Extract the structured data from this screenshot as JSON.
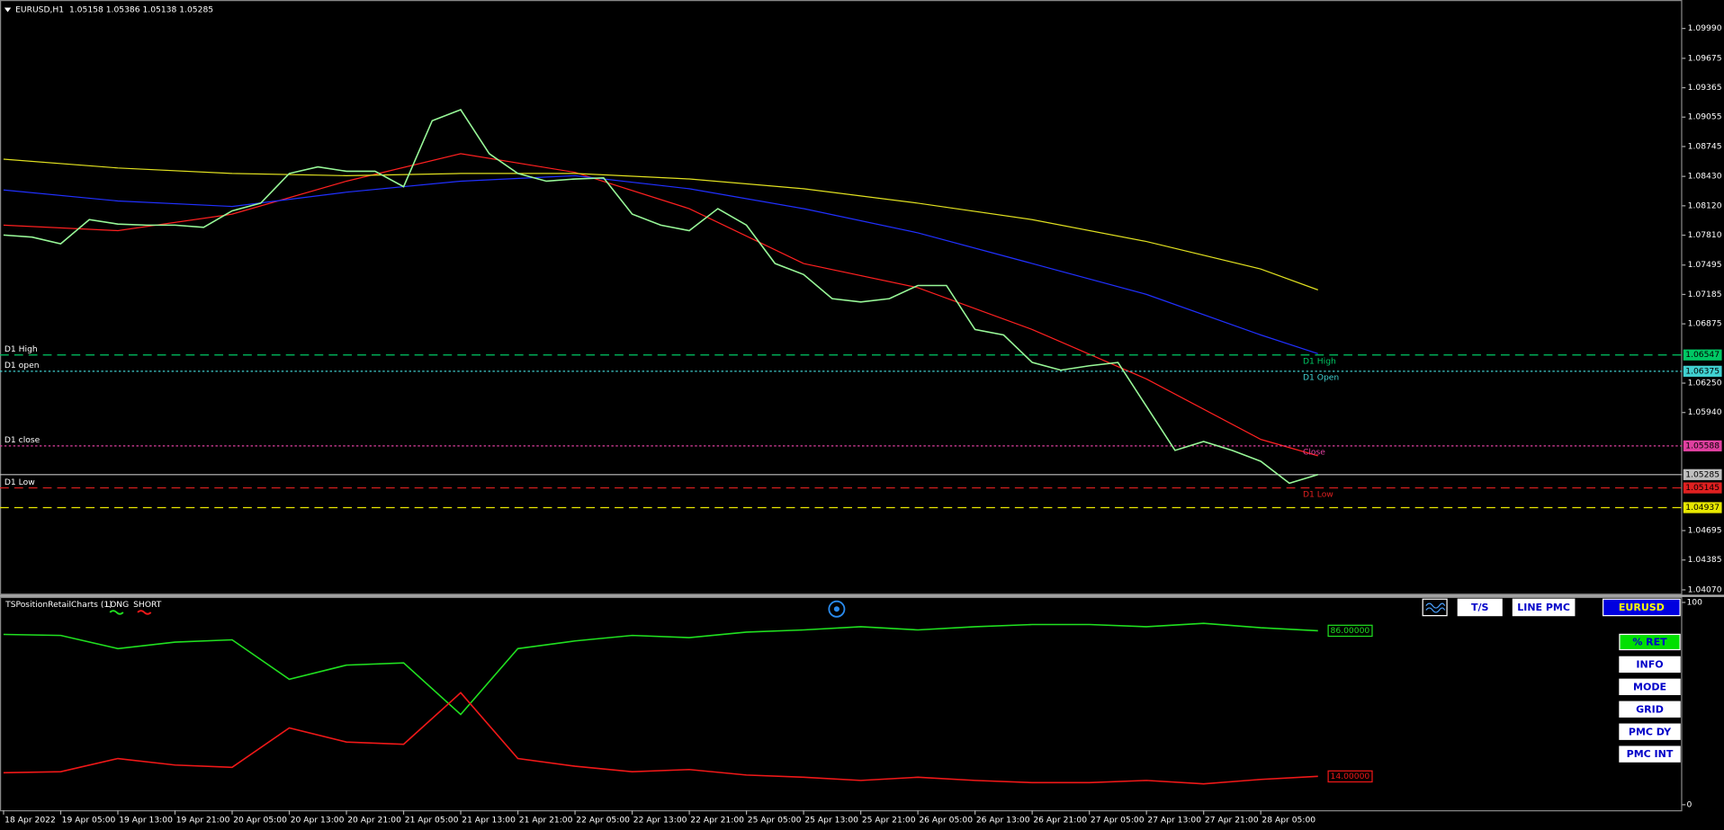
{
  "header": "EURUSD,H1  1.05158 1.05386 1.05138 1.05285",
  "chart_data": [
    {
      "type": "line",
      "xlim": [
        -0.5,
        235
      ],
      "ylim": [
        1.0403,
        1.1029
      ],
      "x": [
        0,
        4,
        8,
        12,
        16,
        20,
        24,
        28,
        32,
        36,
        40,
        44,
        48,
        52,
        56,
        60,
        64,
        68,
        72,
        76,
        80,
        84,
        88,
        92,
        96,
        100,
        104,
        108,
        112,
        116,
        120,
        124,
        128,
        132,
        136,
        140,
        144,
        148,
        152,
        156,
        160,
        164,
        168,
        172,
        176,
        180,
        184
      ],
      "values": [
        1.07812,
        1.07789,
        1.07719,
        1.07974,
        1.07928,
        1.07916,
        1.07916,
        1.07893,
        1.08067,
        1.08148,
        1.08461,
        1.0853,
        1.08484,
        1.08484,
        1.08322,
        1.09017,
        1.09133,
        1.08669,
        1.08461,
        1.0838,
        1.08403,
        1.08414,
        1.08032,
        1.07916,
        1.07858,
        1.0809,
        1.07916,
        1.07511,
        1.07395,
        1.0714,
        1.07105,
        1.0714,
        1.07279,
        1.07279,
        1.06816,
        1.06758,
        1.06468,
        1.06387,
        1.06433,
        1.06468,
        1.06005,
        1.05541,
        1.05634,
        1.05541,
        1.05426,
        1.05194,
        1.05285
      ],
      "color": "#98f898",
      "moving_averages": [
        {
          "color": "#ff2020",
          "x": [
            0,
            16,
            32,
            48,
            64,
            80,
            96,
            112,
            128,
            144,
            160,
            176,
            184
          ],
          "values": [
            1.07916,
            1.07858,
            1.08032,
            1.0838,
            1.08669,
            1.08472,
            1.0809,
            1.07511,
            1.07256,
            1.06816,
            1.06294,
            1.05657,
            1.05484
          ]
        },
        {
          "color": "#2030ff",
          "x": [
            0,
            16,
            32,
            48,
            64,
            80,
            96,
            112,
            128,
            144,
            160,
            176,
            184
          ],
          "values": [
            1.08287,
            1.08171,
            1.08113,
            1.08264,
            1.0838,
            1.08438,
            1.08299,
            1.0809,
            1.07835,
            1.07511,
            1.07186,
            1.06758,
            1.06561
          ]
        },
        {
          "color": "#e0e020",
          "x": [
            0,
            16,
            32,
            48,
            64,
            80,
            96,
            112,
            128,
            144,
            160,
            176,
            184
          ],
          "values": [
            1.08611,
            1.08519,
            1.08461,
            1.08438,
            1.08461,
            1.08461,
            1.08403,
            1.08299,
            1.08148,
            1.07974,
            1.07743,
            1.07453,
            1.07233
          ]
        }
      ],
      "levels": [
        {
          "value": 1.06547,
          "label": "1.06547",
          "color": "#00c864",
          "dash": "8 5",
          "left_label": "D1 High",
          "right_label": "D1 High"
        },
        {
          "value": 1.06375,
          "label": "1.06375",
          "color": "#40d0d0",
          "dash": "2 2",
          "left_label": "D1 open",
          "right_label": "D1 Open"
        },
        {
          "value": 1.05588,
          "label": "1.05588",
          "color": "#e040a0",
          "dash": "2 2",
          "left_label": "D1 close",
          "right_label": "Close"
        },
        {
          "value": 1.05285,
          "label": "1.05285",
          "color": "#c0c0c0",
          "dash": "none"
        },
        {
          "value": 1.05145,
          "label": "1.05145",
          "color": "#e02020",
          "dash": "8 5",
          "left_label": "D1 Low",
          "right_label": "D1 Low"
        },
        {
          "value": 1.04937,
          "label": "1.04937",
          "color": "#e8e800",
          "dash": "8 5"
        }
      ],
      "yticks": [
        {
          "value": 1.0999,
          "label": "1.09990"
        },
        {
          "value": 1.09675,
          "label": "1.09675"
        },
        {
          "value": 1.09365,
          "label": "1.09365"
        },
        {
          "value": 1.09055,
          "label": "1.09055"
        },
        {
          "value": 1.08745,
          "label": "1.08745"
        },
        {
          "value": 1.0843,
          "label": "1.08430"
        },
        {
          "value": 1.0812,
          "label": "1.08120"
        },
        {
          "value": 1.0781,
          "label": "1.07810"
        },
        {
          "value": 1.07495,
          "label": "1.07495"
        },
        {
          "value": 1.07185,
          "label": "1.07185"
        },
        {
          "value": 1.06875,
          "label": "1.06875"
        },
        {
          "value": 1.0625,
          "label": "1.06250"
        },
        {
          "value": 1.0594,
          "label": "1.05940"
        },
        {
          "value": 1.04695,
          "label": "1.04695"
        },
        {
          "value": 1.04385,
          "label": "1.04385"
        },
        {
          "value": 1.0407,
          "label": "1.04070"
        }
      ],
      "xticks": [
        {
          "value": 0,
          "label": "18 Apr 2022"
        },
        {
          "value": 8,
          "label": "19 Apr 05:00"
        },
        {
          "value": 16,
          "label": "19 Apr 13:00"
        },
        {
          "value": 24,
          "label": "19 Apr 21:00"
        },
        {
          "value": 32,
          "label": "20 Apr 05:00"
        },
        {
          "value": 40,
          "label": "20 Apr 13:00"
        },
        {
          "value": 48,
          "label": "20 Apr 21:00"
        },
        {
          "value": 56,
          "label": "21 Apr 05:00"
        },
        {
          "value": 64,
          "label": "21 Apr 13:00"
        },
        {
          "value": 72,
          "label": "21 Apr 21:00"
        },
        {
          "value": 80,
          "label": "22 Apr 05:00"
        },
        {
          "value": 88,
          "label": "22 Apr 13:00"
        },
        {
          "value": 96,
          "label": "22 Apr 21:00"
        },
        {
          "value": 104,
          "label": "25 Apr 05:00"
        },
        {
          "value": 112,
          "label": "25 Apr 13:00"
        },
        {
          "value": 120,
          "label": "25 Apr 21:00"
        },
        {
          "value": 128,
          "label": "26 Apr 05:00"
        },
        {
          "value": 136,
          "label": "26 Apr 13:00"
        },
        {
          "value": 144,
          "label": "26 Apr 21:00"
        },
        {
          "value": 152,
          "label": "27 Apr 05:00"
        },
        {
          "value": 160,
          "label": "27 Apr 13:00"
        },
        {
          "value": 168,
          "label": "27 Apr 21:00"
        },
        {
          "value": 176,
          "label": "28 Apr 05:00"
        }
      ]
    },
    {
      "type": "line",
      "title": "TSPositionRetailCharts (1)",
      "xlim": [
        -0.5,
        235
      ],
      "ylim": [
        0,
        100
      ],
      "yticks": [
        100,
        0
      ],
      "x": [
        0,
        8,
        16,
        24,
        32,
        40,
        48,
        56,
        64,
        72,
        80,
        88,
        96,
        104,
        112,
        120,
        128,
        136,
        144,
        152,
        160,
        168,
        176,
        184
      ],
      "series": [
        {
          "name": "LONG",
          "color": "#20e020",
          "last_label": "86.00000",
          "values": [
            84.2,
            83.7,
            77.2,
            80.4,
            81.5,
            62.0,
            69.0,
            70.1,
            44.6,
            77.2,
            81.0,
            83.7,
            82.6,
            85.3,
            86.4,
            88.0,
            86.4,
            88.0,
            89.1,
            89.1,
            88.0,
            89.7,
            87.5,
            86
          ]
        },
        {
          "name": "SHORT",
          "color": "#f01818",
          "last_label": "14.00000",
          "values": [
            15.8,
            16.3,
            22.8,
            19.6,
            18.5,
            38.0,
            31.0,
            29.9,
            55.4,
            22.8,
            19.0,
            16.3,
            17.4,
            14.7,
            13.6,
            12.0,
            13.6,
            12.0,
            10.9,
            10.9,
            12.0,
            10.3,
            12.5,
            14
          ]
        }
      ]
    }
  ],
  "buttons": {
    "top": [
      "T/S",
      "LINE PMC",
      "EURUSD"
    ],
    "side": [
      "% RET",
      "INFO",
      "MODE",
      "GRID",
      "PMC DY",
      "PMC INT"
    ]
  }
}
